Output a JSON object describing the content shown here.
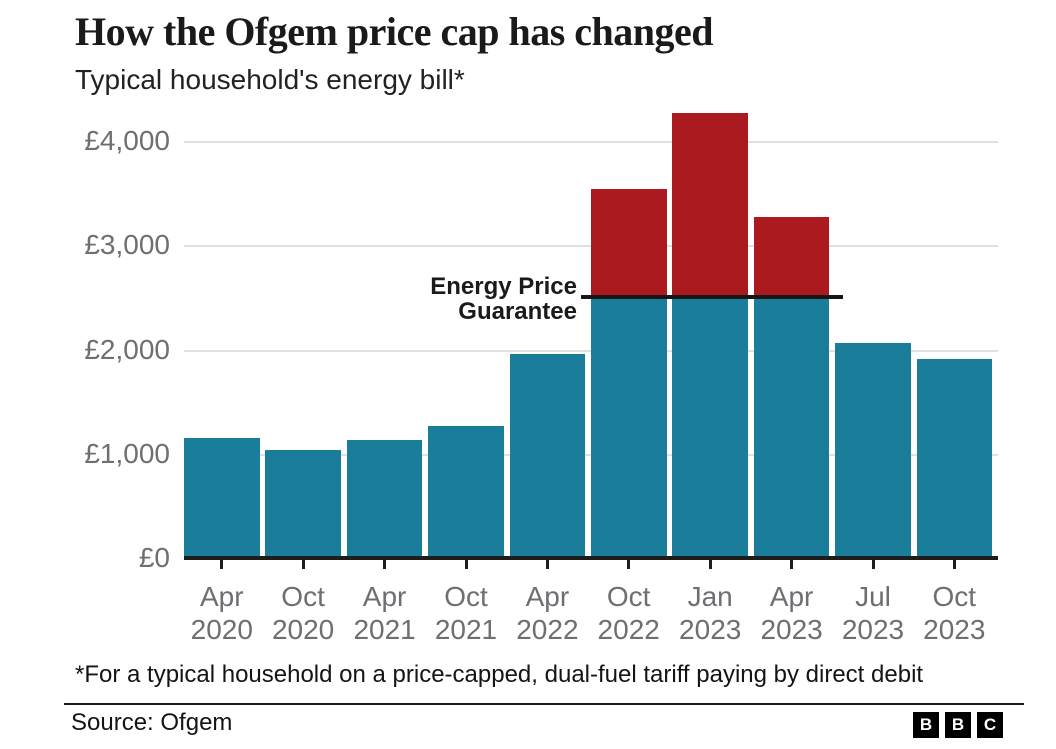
{
  "header": {
    "title": "How the Ofgem price cap has changed",
    "subtitle": "Typical household's energy bill*"
  },
  "chart_data": {
    "type": "bar",
    "title": "How the Ofgem price cap has changed",
    "subtitle": "Typical household's energy bill*",
    "categories": [
      "Apr 2020",
      "Oct 2020",
      "Apr 2021",
      "Oct 2021",
      "Apr 2022",
      "Oct 2022",
      "Jan 2023",
      "Apr 2023",
      "Jul 2023",
      "Oct 2023"
    ],
    "values": [
      1162,
      1042,
      1138,
      1277,
      1971,
      3549,
      4279,
      3280,
      2074,
      1923
    ],
    "xlabel": "",
    "ylabel": "",
    "ylim": [
      0,
      4300
    ],
    "grid": true,
    "legend": "none",
    "y_ticks": [
      {
        "label": "£0",
        "value": 0
      },
      {
        "label": "£1,000",
        "value": 1000
      },
      {
        "label": "£2,000",
        "value": 2000
      },
      {
        "label": "£3,000",
        "value": 3000
      },
      {
        "label": "£4,000",
        "value": 4000
      }
    ],
    "cap": {
      "value": 2500,
      "label_lines": [
        "Energy Price",
        "Guarantee"
      ],
      "label": "Energy Price Guarantee"
    },
    "colors": {
      "bar": "#1a7e9b",
      "over_cap": "#aa1a1e",
      "axis": "#1d1d1b",
      "grid": "#e0e0e0",
      "tick_label": "#6e6e73",
      "cap_line": "#161616"
    }
  },
  "footer": {
    "footnote": "*For a typical household on a price-capped, dual-fuel tariff paying by direct debit",
    "source": "Source: Ofgem",
    "logo_letters": [
      "B",
      "B",
      "C"
    ]
  }
}
